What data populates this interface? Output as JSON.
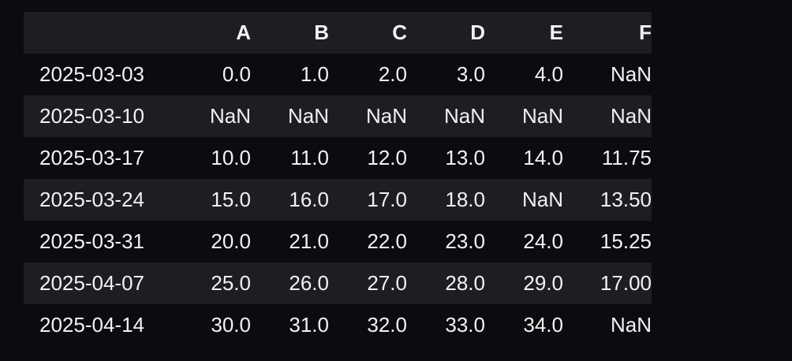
{
  "table": {
    "columns": [
      "",
      "A",
      "B",
      "C",
      "D",
      "E",
      "F"
    ],
    "rows": [
      {
        "index": "2025-03-03",
        "cells": [
          "0.0",
          "1.0",
          "2.0",
          "3.0",
          "4.0",
          "NaN"
        ]
      },
      {
        "index": "2025-03-10",
        "cells": [
          "NaN",
          "NaN",
          "NaN",
          "NaN",
          "NaN",
          "NaN"
        ]
      },
      {
        "index": "2025-03-17",
        "cells": [
          "10.0",
          "11.0",
          "12.0",
          "13.0",
          "14.0",
          "11.75"
        ]
      },
      {
        "index": "2025-03-24",
        "cells": [
          "15.0",
          "16.0",
          "17.0",
          "18.0",
          "NaN",
          "13.50"
        ]
      },
      {
        "index": "2025-03-31",
        "cells": [
          "20.0",
          "21.0",
          "22.0",
          "23.0",
          "24.0",
          "15.25"
        ]
      },
      {
        "index": "2025-04-07",
        "cells": [
          "25.0",
          "26.0",
          "27.0",
          "28.0",
          "29.0",
          "17.00"
        ]
      },
      {
        "index": "2025-04-14",
        "cells": [
          "30.0",
          "31.0",
          "32.0",
          "33.0",
          "34.0",
          "NaN"
        ]
      }
    ]
  },
  "colors": {
    "background": "#0b0c0f",
    "stripe": "#1d1e22",
    "text": "#f2f2f2"
  }
}
